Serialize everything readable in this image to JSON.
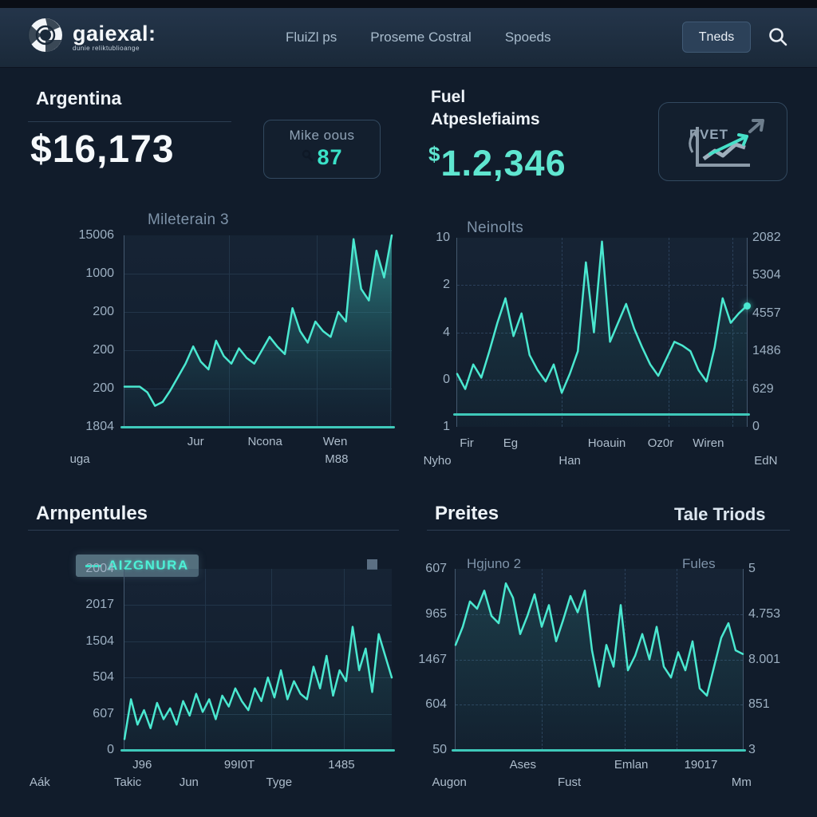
{
  "header": {
    "logo_title": "gaiexal:",
    "logo_subtitle": "dunie reliktublioange",
    "nav_items": [
      "FluiZl ps",
      "Proseme Costral",
      "Spoeds"
    ],
    "trades_label": "Tneds"
  },
  "stats": {
    "left": {
      "title": "Argentina",
      "value": "$16,173",
      "badge_title": "Mike oous",
      "badge_value": "87"
    },
    "right": {
      "title_line1": "Fuel",
      "title_line2": "Atpeslefiaims",
      "value_symbol": "$",
      "value_number": "1.2,346",
      "badge_title": "RVET"
    }
  },
  "sections": {
    "left": {
      "title": "Arnpentules"
    },
    "right": {
      "title": "Preites",
      "link": "Tale Triods"
    }
  },
  "colors": {
    "accent": "#4ae8d0",
    "background": "#111c2b",
    "header": "#24354a"
  },
  "chart_data": [
    {
      "name": "mileterain",
      "type": "area",
      "title": "Mileterain 3",
      "yticks_left": [
        "15006",
        "1000",
        "200",
        "200",
        "200",
        "1804"
      ],
      "xticks": [
        {
          "label": "Jur",
          "x": 0.452
        },
        {
          "label": "Ncona",
          "x": 0.639
        },
        {
          "label": "Wen",
          "x": 0.828
        }
      ],
      "xticks2": [
        {
          "label": "uga",
          "x": 0.14
        },
        {
          "label": "M88",
          "x": 0.832
        }
      ],
      "grid_v": [
        0.39,
        0.72,
        0.995
      ],
      "fill": "strong",
      "values": [
        0.21,
        0.21,
        0.21,
        0.18,
        0.11,
        0.13,
        0.19,
        0.26,
        0.33,
        0.42,
        0.34,
        0.3,
        0.45,
        0.37,
        0.33,
        0.41,
        0.36,
        0.33,
        0.4,
        0.47,
        0.42,
        0.38,
        0.62,
        0.5,
        0.44,
        0.55,
        0.5,
        0.47,
        0.6,
        0.55,
        0.98,
        0.72,
        0.66,
        0.92,
        0.78,
        1.0
      ]
    },
    {
      "name": "neinolts",
      "type": "line",
      "title": "Neinolts",
      "yticks_left": [
        "10",
        "2",
        "4",
        "0",
        "1"
      ],
      "yticks_right": [
        "2082",
        "5304",
        "4557",
        "1486",
        "629",
        "0"
      ],
      "xticks": [
        {
          "label": "Fir",
          "x": 0.1
        },
        {
          "label": "Eg",
          "x": 0.222
        },
        {
          "label": "Hoauin",
          "x": 0.49
        },
        {
          "label": "Oz0r",
          "x": 0.64
        },
        {
          "label": "Wiren",
          "x": 0.773
        }
      ],
      "xticks2": [
        {
          "label": "Nyho",
          "x": 0.018
        },
        {
          "label": "Han",
          "x": 0.387
        },
        {
          "label": "EdN",
          "x": 0.933
        }
      ],
      "grid_v": [
        0.36,
        0.73,
        0.95
      ],
      "dashed": true,
      "fill": "faint",
      "end_dot": true,
      "baseline": 0.935,
      "values": [
        0.28,
        0.2,
        0.33,
        0.26,
        0.4,
        0.55,
        0.68,
        0.48,
        0.6,
        0.38,
        0.3,
        0.24,
        0.33,
        0.18,
        0.28,
        0.4,
        0.87,
        0.5,
        0.98,
        0.45,
        0.55,
        0.65,
        0.52,
        0.42,
        0.33,
        0.27,
        0.36,
        0.45,
        0.43,
        0.4,
        0.3,
        0.24,
        0.42,
        0.68,
        0.55,
        0.6,
        0.64
      ]
    },
    {
      "name": "arnpentules",
      "type": "line",
      "title": "",
      "legend": "AIZGNURA",
      "yticks_left": [
        "2004",
        "2017",
        "1504",
        "504",
        "607",
        "0"
      ],
      "xticks": [
        {
          "label": "J96",
          "x": 0.308
        },
        {
          "label": "99I0T",
          "x": 0.57
        },
        {
          "label": "1485",
          "x": 0.845
        }
      ],
      "xticks2": [
        {
          "label": "Aák",
          "x": 0.032
        },
        {
          "label": "Takic",
          "x": 0.269
        },
        {
          "label": "Jun",
          "x": 0.434
        },
        {
          "label": "Tyge",
          "x": 0.677
        }
      ],
      "grid_v": [
        0.3,
        0.55,
        0.82
      ],
      "fill": "faint",
      "values": [
        0.06,
        0.28,
        0.14,
        0.22,
        0.12,
        0.26,
        0.17,
        0.23,
        0.14,
        0.27,
        0.19,
        0.31,
        0.21,
        0.28,
        0.17,
        0.3,
        0.24,
        0.34,
        0.27,
        0.22,
        0.34,
        0.27,
        0.4,
        0.29,
        0.44,
        0.28,
        0.38,
        0.31,
        0.28,
        0.46,
        0.34,
        0.52,
        0.3,
        0.44,
        0.38,
        0.68,
        0.44,
        0.56,
        0.32,
        0.64,
        0.52,
        0.4
      ]
    },
    {
      "name": "preites",
      "type": "line",
      "title": "",
      "label_left": "Hgjuno 2",
      "label_right": "Fules",
      "yticks_left": [
        "607",
        "965",
        "1467",
        "604",
        "50"
      ],
      "yticks_right": [
        "5",
        "4.753",
        "8.001",
        "851",
        "3"
      ],
      "xticks": [
        {
          "label": "Ases",
          "x": 0.31
        },
        {
          "label": "Emlan",
          "x": 0.59
        },
        {
          "label": "19017",
          "x": 0.77
        }
      ],
      "xticks2": [
        {
          "label": "Augon",
          "x": 0.12
        },
        {
          "label": "Fust",
          "x": 0.43
        },
        {
          "label": "Mm",
          "x": 0.875
        }
      ],
      "grid_v": [
        0.3,
        0.59,
        0.77
      ],
      "dashed": true,
      "fill": "faint",
      "values": [
        0.58,
        0.68,
        0.82,
        0.78,
        0.88,
        0.74,
        0.7,
        0.92,
        0.84,
        0.64,
        0.74,
        0.86,
        0.68,
        0.8,
        0.6,
        0.72,
        0.85,
        0.76,
        0.88,
        0.55,
        0.35,
        0.58,
        0.46,
        0.8,
        0.44,
        0.52,
        0.64,
        0.5,
        0.68,
        0.46,
        0.4,
        0.54,
        0.44,
        0.6,
        0.34,
        0.3,
        0.46,
        0.62,
        0.7,
        0.55,
        0.53
      ]
    }
  ]
}
